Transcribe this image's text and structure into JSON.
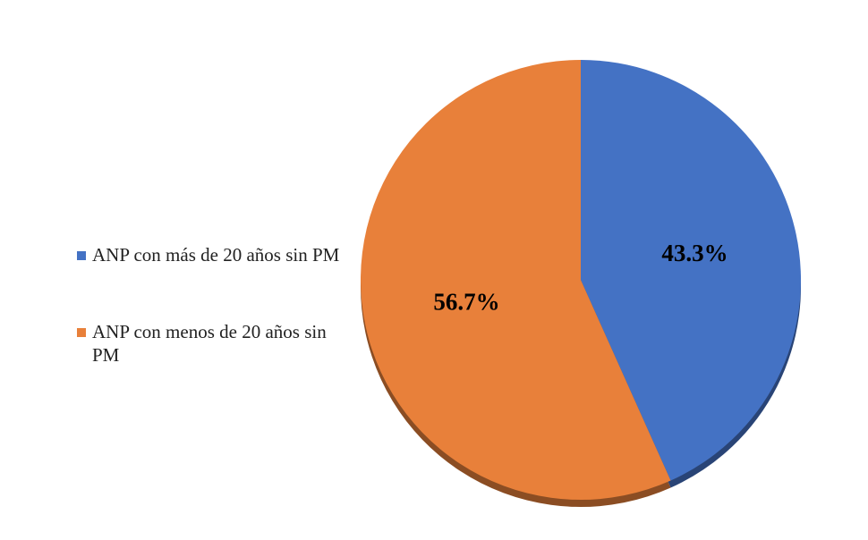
{
  "chart_data": {
    "type": "pie",
    "categories": [
      "ANP con más de 20 años sin PM",
      "ANP con menos de 20 años sin PM"
    ],
    "values": [
      43.3,
      56.7
    ],
    "value_labels": [
      "43.3%",
      "56.7%"
    ],
    "colors": [
      "#4472c4",
      "#e8803a"
    ],
    "legend": "left"
  }
}
